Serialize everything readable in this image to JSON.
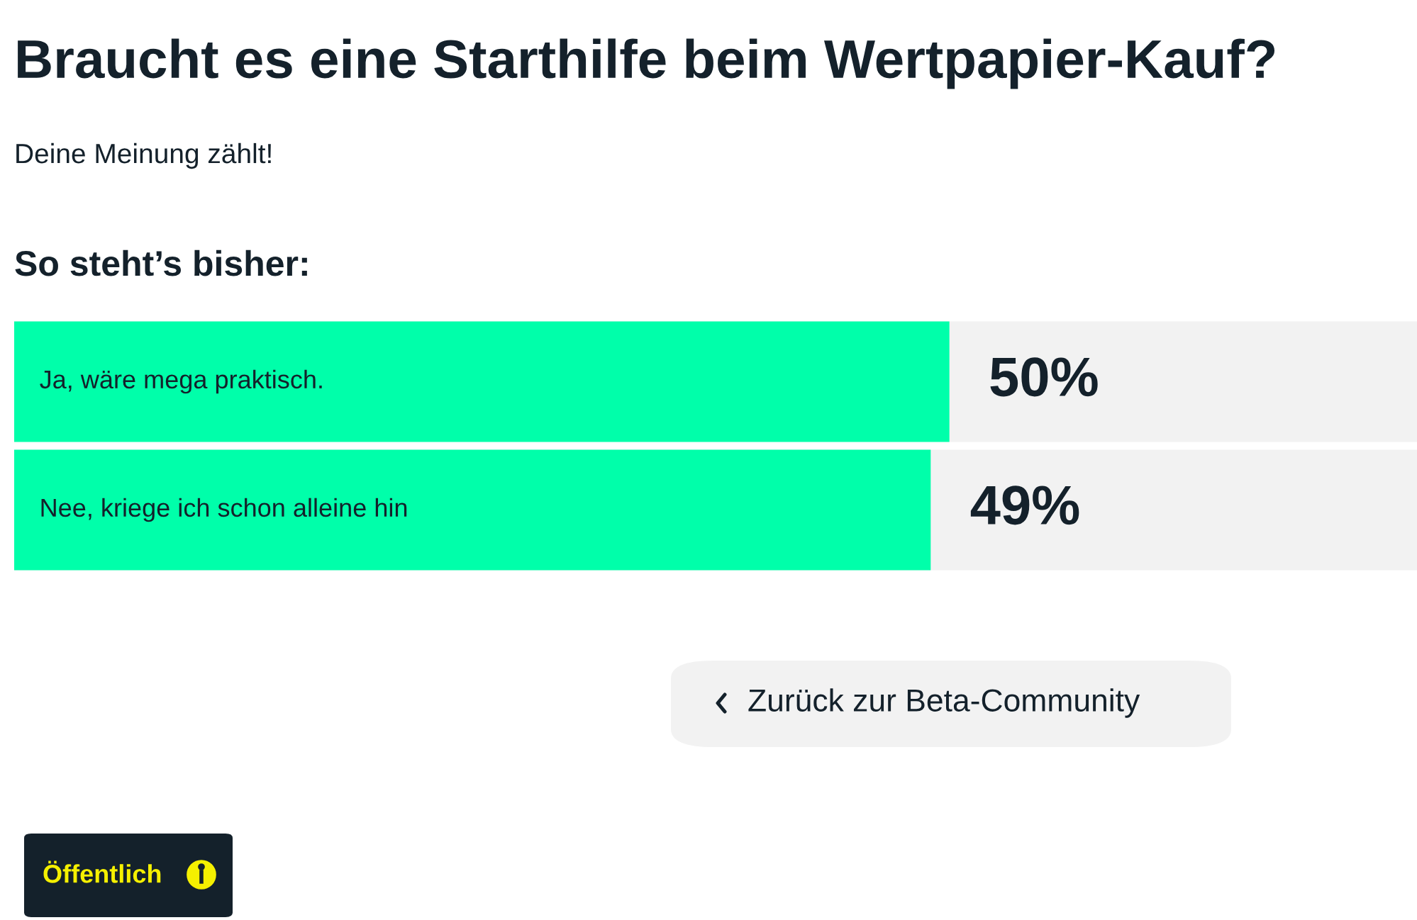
{
  "chart_data": {
    "type": "bar",
    "orientation": "horizontal",
    "title": "Braucht es eine Starthilfe beim Wertpapier-Kauf?",
    "subtitle": "Deine Meinung zählt!",
    "categories": [
      "Ja, wäre mega praktisch.",
      "Nee, kriege ich schon alleine hin"
    ],
    "values": [
      50,
      49
    ],
    "color": "#00ffaa",
    "value_labels": [
      "50%",
      "49%"
    ],
    "xlim": [
      0,
      75
    ],
    "annotations": [
      "So steht’s bisher:",
      "Zurück zur Beta-Community",
      "Öffentlich"
    ]
  }
}
